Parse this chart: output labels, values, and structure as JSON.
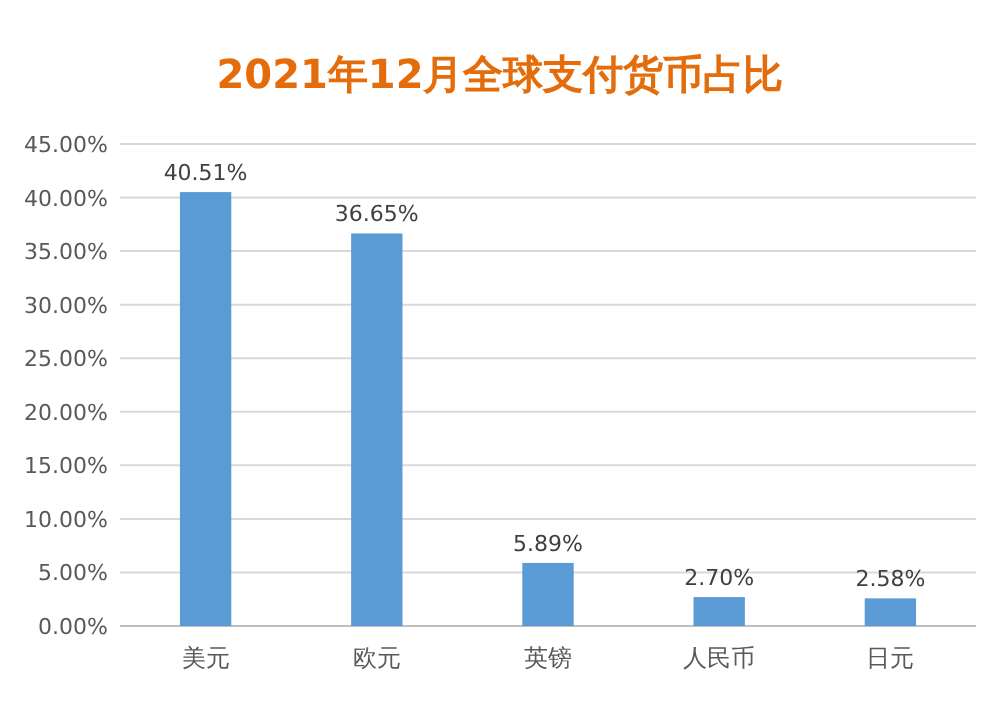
{
  "chart_data": {
    "type": "bar",
    "title": "2021年12月全球支付货币占比",
    "categories": [
      "美元",
      "欧元",
      "英镑",
      "人民币",
      "日元"
    ],
    "values": [
      40.51,
      36.65,
      5.89,
      2.7,
      2.58
    ],
    "value_labels": [
      "40.51%",
      "36.65%",
      "5.89%",
      "2.70%",
      "2.58%"
    ],
    "color": "#5b9bd5",
    "ylim": [
      0,
      45
    ],
    "yticks": [
      {
        "value": 0,
        "label": "0.00%"
      },
      {
        "value": 5,
        "label": "5.00%"
      },
      {
        "value": 10,
        "label": "10.00%"
      },
      {
        "value": 15,
        "label": "15.00%"
      },
      {
        "value": 20,
        "label": "20.00%"
      },
      {
        "value": 25,
        "label": "25.00%"
      },
      {
        "value": 30,
        "label": "30.00%"
      },
      {
        "value": 35,
        "label": "35.00%"
      },
      {
        "value": 40,
        "label": "40.00%"
      },
      {
        "value": 45,
        "label": "45.00%"
      }
    ],
    "grid": "y"
  }
}
